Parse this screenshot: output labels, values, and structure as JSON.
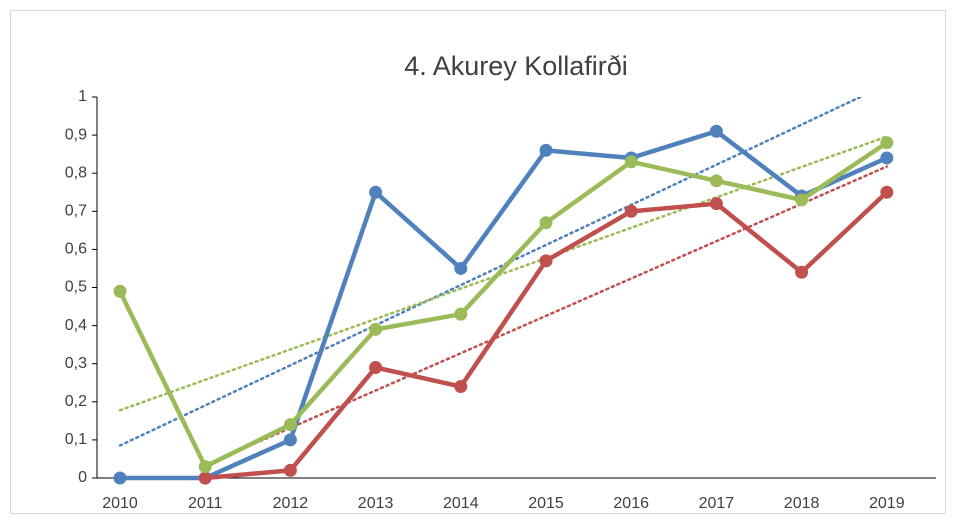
{
  "chart_data": {
    "type": "line",
    "title": "4. Akurey Kollafirði",
    "categories": [
      "2010",
      "2011",
      "2012",
      "2013",
      "2014",
      "2015",
      "2016",
      "2017",
      "2018",
      "2019"
    ],
    "series": [
      {
        "color": "#4f81bd",
        "values": [
          0,
          0,
          0.1,
          0.75,
          0.55,
          0.86,
          0.84,
          0.91,
          0.74,
          0.84
        ]
      },
      {
        "color": "#c0504d",
        "values": [
          null,
          0,
          0.02,
          0.29,
          0.24,
          0.57,
          0.7,
          0.72,
          0.54,
          0.75
        ]
      },
      {
        "color": "#9bbb59",
        "values": [
          0.49,
          0.03,
          0.14,
          0.39,
          0.43,
          0.67,
          0.83,
          0.78,
          0.73,
          0.88
        ]
      }
    ],
    "ylim": [
      0,
      1
    ],
    "yticks": [
      0,
      {
        "value": 0.1,
        "label": "0,1"
      },
      {
        "value": 0.2,
        "label": "0,2"
      },
      {
        "value": 0.3,
        "label": "0,3"
      },
      {
        "value": 0.4,
        "label": "0,4"
      },
      {
        "value": 0.5,
        "label": "0,5"
      },
      {
        "value": 0.6,
        "label": "0,6"
      },
      {
        "value": 0.7,
        "label": "0,7"
      },
      {
        "value": 0.8,
        "label": "0,8"
      },
      {
        "value": 0.9,
        "label": "0,9"
      },
      1
    ],
    "trendline": true
  }
}
